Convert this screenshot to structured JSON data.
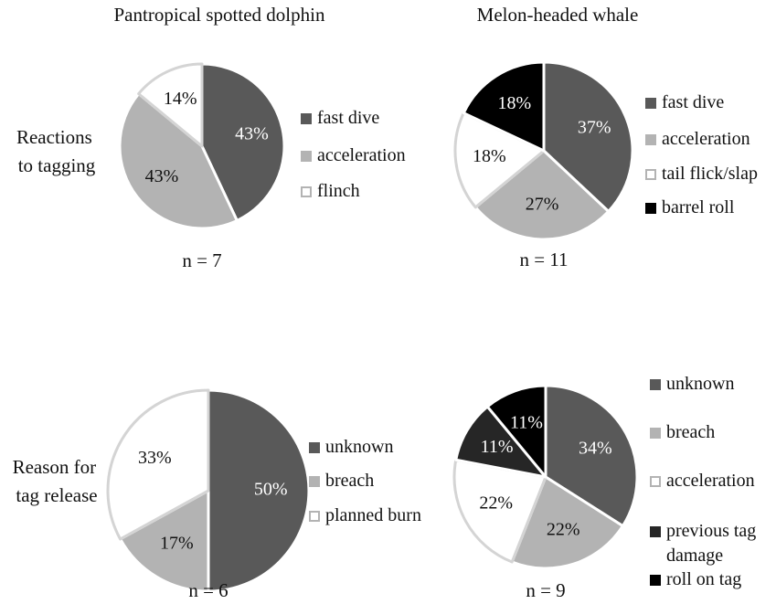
{
  "column_titles": [
    "Pantropical spotted dolphin",
    "Melon-headed whale"
  ],
  "row_labels": [
    "Reactions to tagging",
    "Reason for tag release"
  ],
  "chart_data": [
    {
      "type": "pie",
      "note": "n = 7",
      "categories": [
        "fast dive",
        "acceleration",
        "flinch"
      ],
      "values": [
        43,
        43,
        14
      ],
      "value_labels": [
        "43%",
        "43%",
        "14%"
      ],
      "colors": [
        "#595959",
        "#b3b3b3",
        "#ffffff"
      ]
    },
    {
      "type": "pie",
      "note": "n = 11",
      "categories": [
        "fast dive",
        "acceleration",
        "tail flick/slap",
        "barrel roll"
      ],
      "values": [
        37,
        27,
        18,
        18
      ],
      "value_labels": [
        "37%",
        "27%",
        "18%",
        "18%"
      ],
      "colors": [
        "#595959",
        "#b3b3b3",
        "#ffffff",
        "#000000"
      ]
    },
    {
      "type": "pie",
      "note": "n = 6",
      "categories": [
        "unknown",
        "breach",
        "planned burn"
      ],
      "values": [
        50,
        17,
        33
      ],
      "value_labels": [
        "50%",
        "17%",
        "33%"
      ],
      "colors": [
        "#595959",
        "#b3b3b3",
        "#ffffff"
      ]
    },
    {
      "type": "pie",
      "note": "n = 9",
      "categories": [
        "unknown",
        "breach",
        "acceleration",
        "previous tag damage",
        "roll on tag"
      ],
      "values": [
        34,
        22,
        22,
        11,
        11
      ],
      "value_labels": [
        "34%",
        "22%",
        "22%",
        "11%",
        "11%"
      ],
      "colors": [
        "#595959",
        "#b3b3b3",
        "#ffffff",
        "#262626",
        "#000000"
      ]
    }
  ]
}
